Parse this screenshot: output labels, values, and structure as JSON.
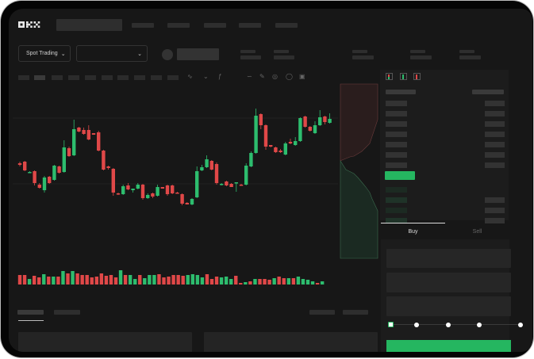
{
  "header": {
    "logo": "OKX",
    "nav_items": 5
  },
  "toolbar": {
    "market_select_label": "Spot Trading",
    "pair_select_value": ""
  },
  "order_panel": {
    "tabs": [
      {
        "label": "Buy",
        "active": true
      },
      {
        "label": "Sell",
        "active": false
      }
    ],
    "slider_percent": 0,
    "slider_stops": [
      0,
      25,
      50,
      75,
      100
    ],
    "view_icons": [
      "orderbook-both-icon",
      "orderbook-bids-icon",
      "orderbook-asks-icon"
    ]
  },
  "colors": {
    "up": "#2dbd6e",
    "down": "#e04848",
    "background": "#171717",
    "accent": "#25b660"
  },
  "chart_data": {
    "type": "candlestick",
    "candles": [
      [
        95,
        93,
        97,
        91
      ],
      [
        97,
        86,
        98,
        85
      ],
      [
        83,
        84,
        85,
        83
      ],
      [
        85,
        70,
        86,
        67
      ],
      [
        68,
        64,
        70,
        63
      ],
      [
        61,
        77,
        79,
        58
      ],
      [
        78,
        70,
        79,
        69
      ],
      [
        74,
        92,
        93,
        73
      ],
      [
        91,
        83,
        92,
        82
      ],
      [
        84,
        115,
        124,
        83
      ],
      [
        114,
        104,
        116,
        103
      ],
      [
        105,
        138,
        150,
        104
      ],
      [
        140,
        135,
        141,
        134
      ],
      [
        137,
        132,
        140,
        131
      ],
      [
        137,
        125,
        143,
        124
      ],
      [
        133,
        131,
        133,
        131
      ],
      [
        134,
        111,
        136,
        110
      ],
      [
        111,
        87,
        112,
        86
      ],
      [
        91,
        89,
        92,
        87
      ],
      [
        88,
        58,
        89,
        54
      ],
      [
        57,
        56,
        58,
        55
      ],
      [
        56,
        66,
        68,
        55
      ],
      [
        67,
        62,
        70,
        61
      ],
      [
        61,
        63,
        63,
        58
      ],
      [
        63,
        68,
        70,
        62
      ],
      [
        68,
        51,
        69,
        49
      ],
      [
        51,
        55,
        57,
        50
      ],
      [
        57,
        53,
        58,
        51
      ],
      [
        54,
        65,
        68,
        53
      ],
      [
        65,
        63,
        65,
        63
      ],
      [
        67,
        56,
        68,
        54
      ],
      [
        67,
        57,
        68,
        56
      ],
      [
        58,
        57,
        59,
        57
      ],
      [
        56,
        44,
        57,
        42
      ],
      [
        45,
        43,
        46,
        43
      ],
      [
        43,
        50,
        51,
        42
      ],
      [
        52,
        85,
        91,
        51
      ],
      [
        86,
        90,
        93,
        85
      ],
      [
        90,
        100,
        105,
        89
      ],
      [
        98,
        87,
        99,
        86
      ],
      [
        94,
        70,
        96,
        68
      ],
      [
        68,
        69,
        70,
        67
      ],
      [
        72,
        67,
        73,
        66
      ],
      [
        69,
        65,
        70,
        65
      ],
      [
        70,
        71,
        71,
        59
      ],
      [
        68,
        67,
        69,
        67
      ],
      [
        68,
        92,
        95,
        67
      ],
      [
        91,
        108,
        110,
        90
      ],
      [
        108,
        155,
        164,
        107
      ],
      [
        157,
        143,
        158,
        138
      ],
      [
        143,
        116,
        144,
        112
      ],
      [
        118,
        116,
        118,
        115
      ],
      [
        115,
        109,
        116,
        108
      ],
      [
        111,
        109,
        113,
        108
      ],
      [
        106,
        120,
        122,
        105
      ],
      [
        122,
        120,
        126,
        119
      ],
      [
        118,
        123,
        128,
        117
      ],
      [
        123,
        152,
        153,
        122
      ],
      [
        154,
        141,
        155,
        140
      ],
      [
        141,
        136,
        142,
        135
      ],
      [
        133,
        143,
        148,
        132
      ],
      [
        143,
        153,
        162,
        142
      ],
      [
        154,
        147,
        155,
        144
      ],
      [
        146,
        151,
        158,
        145
      ]
    ],
    "volume": [
      [
        12,
        "d"
      ],
      [
        12,
        "d"
      ],
      [
        7,
        "u"
      ],
      [
        11,
        "d"
      ],
      [
        9,
        "d"
      ],
      [
        13,
        "u"
      ],
      [
        10,
        "d"
      ],
      [
        10,
        "u"
      ],
      [
        10,
        "d"
      ],
      [
        17,
        "u"
      ],
      [
        14,
        "d"
      ],
      [
        17,
        "u"
      ],
      [
        14,
        "d"
      ],
      [
        12,
        "d"
      ],
      [
        12,
        "d"
      ],
      [
        9,
        "d"
      ],
      [
        10,
        "d"
      ],
      [
        14,
        "d"
      ],
      [
        11,
        "d"
      ],
      [
        12,
        "d"
      ],
      [
        9,
        "d"
      ],
      [
        18,
        "u"
      ],
      [
        12,
        "d"
      ],
      [
        12,
        "u"
      ],
      [
        7,
        "u"
      ],
      [
        12,
        "d"
      ],
      [
        8,
        "u"
      ],
      [
        12,
        "u"
      ],
      [
        12,
        "u"
      ],
      [
        13,
        "d"
      ],
      [
        9,
        "d"
      ],
      [
        10,
        "d"
      ],
      [
        12,
        "d"
      ],
      [
        12,
        "d"
      ],
      [
        11,
        "d"
      ],
      [
        12,
        "u"
      ],
      [
        13,
        "u"
      ],
      [
        12,
        "u"
      ],
      [
        9,
        "u"
      ],
      [
        13,
        "d"
      ],
      [
        7,
        "d"
      ],
      [
        10,
        "d"
      ],
      [
        9,
        "u"
      ],
      [
        10,
        "u"
      ],
      [
        7,
        "u"
      ],
      [
        11,
        "d"
      ],
      [
        2,
        "d"
      ],
      [
        3,
        "u"
      ],
      [
        4,
        "d"
      ],
      [
        7,
        "u"
      ],
      [
        7,
        "d"
      ],
      [
        7,
        "d"
      ],
      [
        6,
        "d"
      ],
      [
        8,
        "u"
      ],
      [
        10,
        "d"
      ],
      [
        8,
        "d"
      ],
      [
        8,
        "u"
      ],
      [
        8,
        "d"
      ],
      [
        10,
        "u"
      ],
      [
        7,
        "u"
      ],
      [
        6,
        "u"
      ],
      [
        4,
        "u"
      ],
      [
        2,
        "d"
      ],
      [
        4,
        "u"
      ]
    ]
  }
}
